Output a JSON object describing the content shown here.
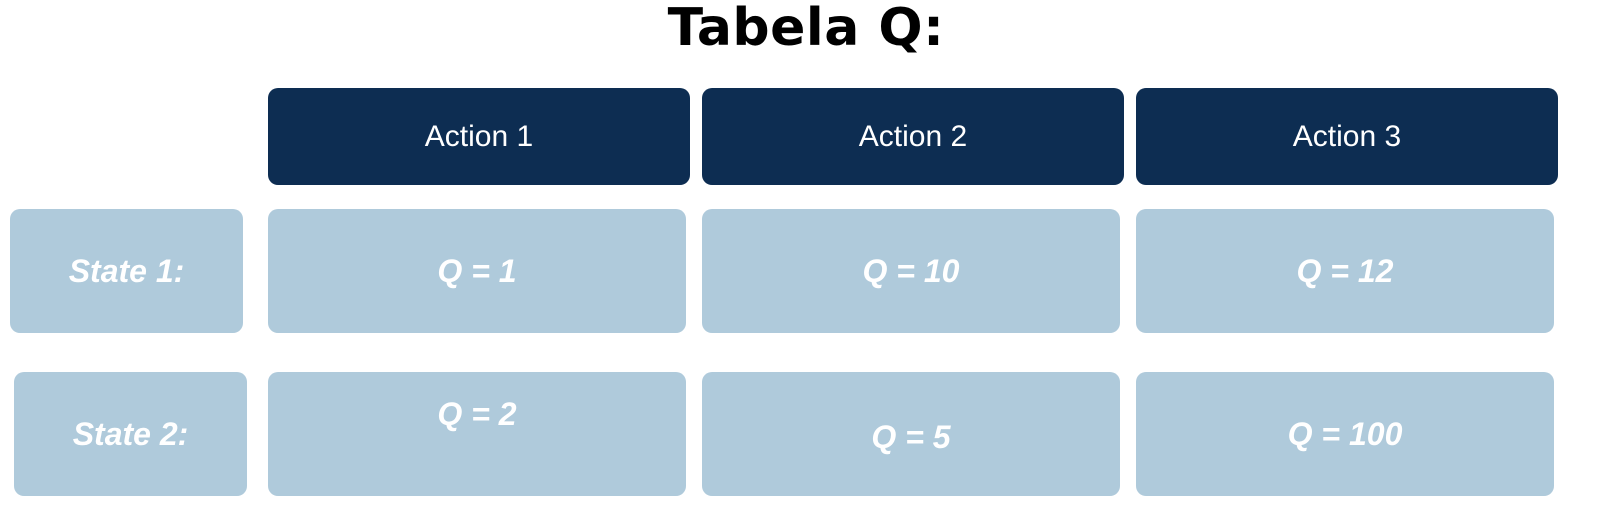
{
  "title": "Tabela Q:",
  "actions": [
    "Action 1",
    "Action 2",
    "Action 3"
  ],
  "states": [
    "State 1:",
    "State 2:"
  ],
  "q_values": [
    [
      "Q = 1",
      "Q = 10",
      "Q = 12"
    ],
    [
      "Q = 2",
      "Q = 5",
      "Q = 100"
    ]
  ],
  "colors": {
    "header_bg": "#0d2d52",
    "cell_bg": "#afcadb",
    "text_light": "#ffffff"
  }
}
